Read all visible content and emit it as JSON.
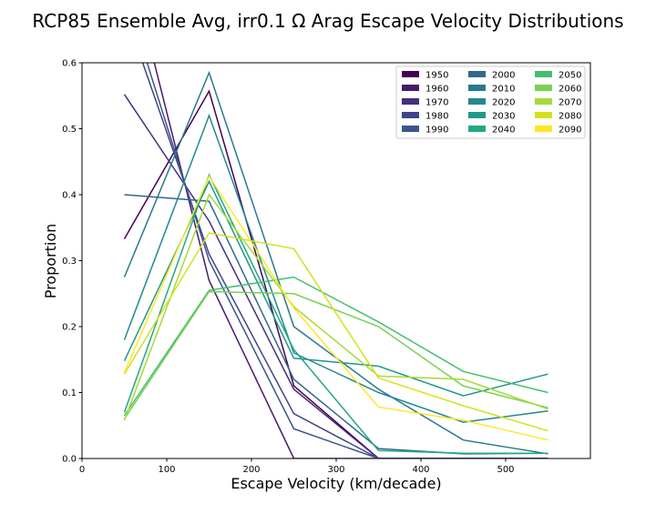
{
  "chart_data": {
    "type": "line",
    "title": "RCP85 Ensemble Avg, irr0.1 Ω Arag Escape Velocity Distributions",
    "xlabel": "Escape Velocity (km/decade)",
    "ylabel": "Proportion",
    "xlim": [
      0,
      600
    ],
    "ylim": [
      0,
      0.6
    ],
    "x_ticks": [
      0,
      100,
      200,
      300,
      400,
      500
    ],
    "y_ticks": [
      0.0,
      0.1,
      0.2,
      0.3,
      0.4,
      0.5,
      0.6
    ],
    "x": [
      50,
      150,
      250,
      350,
      450,
      550
    ],
    "grid": false,
    "legend_position": "top-right",
    "legend_columns": 3,
    "series": [
      {
        "name": "1950",
        "color": "#440154",
        "values": [
          0.333,
          0.557,
          0.11,
          0.0,
          0.0,
          0.0
        ]
      },
      {
        "name": "1960",
        "color": "#481a6c",
        "values": [
          0.78,
          0.27,
          0.0,
          0.0,
          0.0,
          0.0
        ]
      },
      {
        "name": "1970",
        "color": "#472f7d",
        "values": [
          0.552,
          0.36,
          0.105,
          0.0,
          0.0,
          0.0
        ]
      },
      {
        "name": "1980",
        "color": "#414487",
        "values": [
          0.68,
          0.31,
          0.068,
          0.0,
          0.0,
          0.0
        ]
      },
      {
        "name": "1990",
        "color": "#39568c",
        "values": [
          0.71,
          0.3,
          0.045,
          0.0,
          0.0,
          0.0
        ]
      },
      {
        "name": "2000",
        "color": "#31688e",
        "values": [
          0.4,
          0.39,
          0.12,
          0.015,
          0.007,
          0.008
        ]
      },
      {
        "name": "2010",
        "color": "#2a788e",
        "values": [
          0.275,
          0.585,
          0.2,
          0.105,
          0.028,
          0.007
        ]
      },
      {
        "name": "2020",
        "color": "#23888e",
        "values": [
          0.18,
          0.52,
          0.16,
          0.1,
          0.055,
          0.072
        ]
      },
      {
        "name": "2030",
        "color": "#1f988b",
        "values": [
          0.148,
          0.42,
          0.152,
          0.14,
          0.095,
          0.128
        ]
      },
      {
        "name": "2040",
        "color": "#22a884",
        "values": [
          0.07,
          0.43,
          0.165,
          0.012,
          0.008,
          0.008
        ]
      },
      {
        "name": "2050",
        "color": "#44bf70",
        "values": [
          0.065,
          0.255,
          0.275,
          0.207,
          0.132,
          0.1
        ]
      },
      {
        "name": "2060",
        "color": "#7ad151",
        "values": [
          0.06,
          0.253,
          0.25,
          0.2,
          0.11,
          0.077
        ]
      },
      {
        "name": "2070",
        "color": "#a5db36",
        "values": [
          0.058,
          0.4,
          0.23,
          0.125,
          0.12,
          0.075
        ]
      },
      {
        "name": "2080",
        "color": "#d2e21b",
        "values": [
          0.128,
          0.342,
          0.318,
          0.122,
          0.08,
          0.042
        ]
      },
      {
        "name": "2090",
        "color": "#fde725",
        "values": [
          0.13,
          0.428,
          0.228,
          0.078,
          0.058,
          0.028
        ]
      }
    ]
  }
}
